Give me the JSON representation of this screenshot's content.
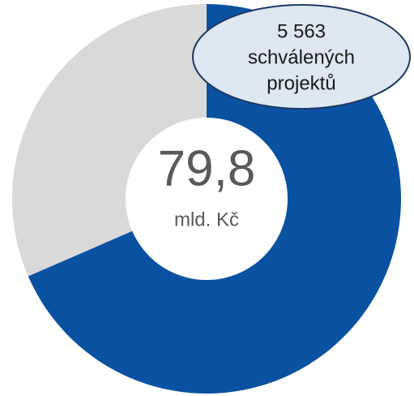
{
  "chart_data": {
    "type": "donut",
    "center_value": "79,8",
    "center_unit": "mld. Kč",
    "annotation": [
      "5 563",
      "schválených",
      "projektů"
    ],
    "values": [
      68.5,
      31.5
    ],
    "colors": [
      "#0a52a1",
      "#d9d9d9"
    ]
  }
}
